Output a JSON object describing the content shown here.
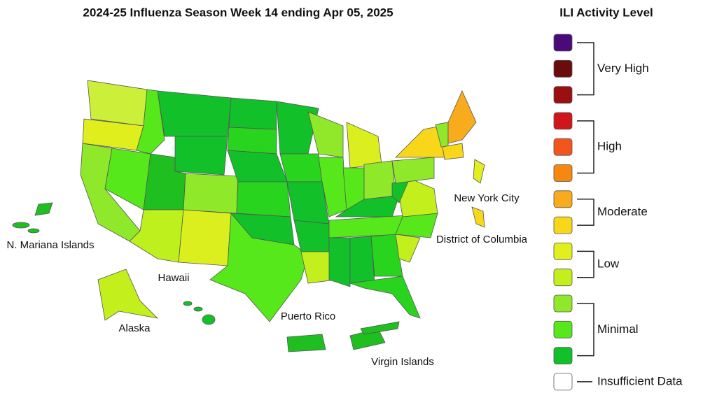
{
  "title": "2024-25 Influenza Season Week 14 ending Apr 05, 2025",
  "map_labels": [
    "N. Mariana Islands",
    "Hawaii",
    "Alaska",
    "Puerto Rico",
    "Virgin Islands",
    "New York City",
    "District of Columbia"
  ],
  "legend": {
    "title": "ILI Activity Level",
    "groups": [
      {
        "label": "Very High",
        "colors": [
          "#4b0a7a",
          "#6b0b0b",
          "#9a1010"
        ]
      },
      {
        "label": "High",
        "colors": [
          "#d0161a",
          "#f2561c",
          "#f7880f"
        ]
      },
      {
        "label": "Moderate",
        "colors": [
          "#f8ab1d",
          "#f8d61a"
        ]
      },
      {
        "label": "Low",
        "colors": [
          "#e2ef1e",
          "#c3ef1c"
        ]
      },
      {
        "label": "Minimal",
        "colors": [
          "#8fe82a",
          "#56e81a",
          "#12c12a"
        ]
      }
    ],
    "insufficient": {
      "label": "Insufficient Data",
      "color": "#ffffff"
    }
  }
}
